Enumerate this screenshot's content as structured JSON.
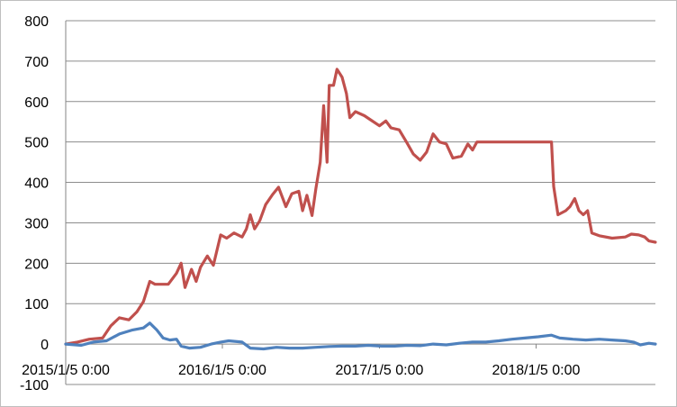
{
  "chart_data": {
    "type": "line",
    "title": "",
    "xlabel": "",
    "ylabel": "",
    "ylim": [
      -100,
      800
    ],
    "yticks": [
      -100,
      0,
      100,
      200,
      300,
      400,
      500,
      600,
      700,
      800
    ],
    "xlim": [
      "2015-01-05",
      "2018-10-10"
    ],
    "xticks": [
      {
        "date": "2015-01-05",
        "label": "2015/1/5 0:00"
      },
      {
        "date": "2016-01-05",
        "label": "2016/1/5 0:00"
      },
      {
        "date": "2017-01-05",
        "label": "2017/1/5 0:00"
      },
      {
        "date": "2018-01-05",
        "label": "2018/1/5 0:00"
      }
    ],
    "grid": true,
    "legend": "none",
    "series": [
      {
        "color": "#c0504d",
        "points": [
          [
            "2015-01-05",
            0
          ],
          [
            "2015-02-01",
            5
          ],
          [
            "2015-03-01",
            12
          ],
          [
            "2015-04-01",
            15
          ],
          [
            "2015-04-20",
            45
          ],
          [
            "2015-05-10",
            65
          ],
          [
            "2015-06-01",
            60
          ],
          [
            "2015-06-20",
            80
          ],
          [
            "2015-07-05",
            105
          ],
          [
            "2015-07-20",
            155
          ],
          [
            "2015-08-01",
            148
          ],
          [
            "2015-09-01",
            148
          ],
          [
            "2015-09-20",
            175
          ],
          [
            "2015-10-01",
            200
          ],
          [
            "2015-10-10",
            140
          ],
          [
            "2015-10-25",
            185
          ],
          [
            "2015-11-05",
            155
          ],
          [
            "2015-11-15",
            190
          ],
          [
            "2015-12-01",
            218
          ],
          [
            "2015-12-15",
            195
          ],
          [
            "2016-01-01",
            270
          ],
          [
            "2016-01-15",
            262
          ],
          [
            "2016-02-01",
            275
          ],
          [
            "2016-02-20",
            265
          ],
          [
            "2016-03-01",
            285
          ],
          [
            "2016-03-10",
            320
          ],
          [
            "2016-03-20",
            285
          ],
          [
            "2016-04-01",
            305
          ],
          [
            "2016-04-15",
            345
          ],
          [
            "2016-05-01",
            370
          ],
          [
            "2016-05-15",
            388
          ],
          [
            "2016-06-01",
            340
          ],
          [
            "2016-06-15",
            372
          ],
          [
            "2016-07-01",
            378
          ],
          [
            "2016-07-10",
            330
          ],
          [
            "2016-07-20",
            368
          ],
          [
            "2016-08-01",
            318
          ],
          [
            "2016-08-10",
            385
          ],
          [
            "2016-08-20",
            450
          ],
          [
            "2016-08-28",
            590
          ],
          [
            "2016-09-05",
            450
          ],
          [
            "2016-09-10",
            640
          ],
          [
            "2016-09-20",
            640
          ],
          [
            "2016-09-28",
            680
          ],
          [
            "2016-10-10",
            660
          ],
          [
            "2016-10-20",
            620
          ],
          [
            "2016-10-28",
            560
          ],
          [
            "2016-11-10",
            575
          ],
          [
            "2016-12-01",
            565
          ],
          [
            "2016-12-15",
            555
          ],
          [
            "2017-01-05",
            540
          ],
          [
            "2017-01-20",
            552
          ],
          [
            "2017-02-01",
            535
          ],
          [
            "2017-02-20",
            530
          ],
          [
            "2017-03-10",
            498
          ],
          [
            "2017-03-25",
            470
          ],
          [
            "2017-04-10",
            455
          ],
          [
            "2017-04-25",
            475
          ],
          [
            "2017-05-10",
            520
          ],
          [
            "2017-05-25",
            500
          ],
          [
            "2017-06-10",
            495
          ],
          [
            "2017-06-25",
            460
          ],
          [
            "2017-07-15",
            465
          ],
          [
            "2017-07-30",
            495
          ],
          [
            "2017-08-10",
            480
          ],
          [
            "2017-08-20",
            500
          ],
          [
            "2017-09-15",
            500
          ],
          [
            "2017-10-15",
            500
          ],
          [
            "2017-11-15",
            500
          ],
          [
            "2017-12-15",
            500
          ],
          [
            "2018-01-15",
            500
          ],
          [
            "2018-02-10",
            500
          ],
          [
            "2018-02-15",
            390
          ],
          [
            "2018-02-25",
            320
          ],
          [
            "2018-03-15",
            330
          ],
          [
            "2018-03-25",
            340
          ],
          [
            "2018-04-05",
            360
          ],
          [
            "2018-04-15",
            330
          ],
          [
            "2018-04-25",
            320
          ],
          [
            "2018-05-05",
            330
          ],
          [
            "2018-05-15",
            275
          ],
          [
            "2018-06-01",
            268
          ],
          [
            "2018-07-01",
            262
          ],
          [
            "2018-08-01",
            265
          ],
          [
            "2018-08-15",
            272
          ],
          [
            "2018-09-01",
            270
          ],
          [
            "2018-09-15",
            265
          ],
          [
            "2018-09-25",
            255
          ],
          [
            "2018-10-10",
            252
          ]
        ]
      },
      {
        "color": "#4f81bd",
        "points": [
          [
            "2015-01-05",
            0
          ],
          [
            "2015-02-10",
            -3
          ],
          [
            "2015-03-10",
            5
          ],
          [
            "2015-04-10",
            8
          ],
          [
            "2015-05-10",
            25
          ],
          [
            "2015-06-10",
            35
          ],
          [
            "2015-07-05",
            40
          ],
          [
            "2015-07-20",
            52
          ],
          [
            "2015-08-05",
            35
          ],
          [
            "2015-08-20",
            15
          ],
          [
            "2015-09-05",
            10
          ],
          [
            "2015-09-20",
            12
          ],
          [
            "2015-10-01",
            -5
          ],
          [
            "2015-10-20",
            -10
          ],
          [
            "2015-11-15",
            -8
          ],
          [
            "2015-12-10",
            0
          ],
          [
            "2016-01-01",
            5
          ],
          [
            "2016-01-20",
            8
          ],
          [
            "2016-02-20",
            5
          ],
          [
            "2016-03-10",
            -10
          ],
          [
            "2016-04-10",
            -12
          ],
          [
            "2016-05-10",
            -8
          ],
          [
            "2016-06-10",
            -10
          ],
          [
            "2016-07-10",
            -10
          ],
          [
            "2016-08-10",
            -8
          ],
          [
            "2016-09-10",
            -6
          ],
          [
            "2016-10-10",
            -5
          ],
          [
            "2016-11-10",
            -5
          ],
          [
            "2016-12-10",
            -3
          ],
          [
            "2017-01-10",
            -5
          ],
          [
            "2017-02-10",
            -5
          ],
          [
            "2017-03-10",
            -3
          ],
          [
            "2017-04-10",
            -4
          ],
          [
            "2017-05-10",
            0
          ],
          [
            "2017-06-10",
            -2
          ],
          [
            "2017-07-10",
            2
          ],
          [
            "2017-08-10",
            5
          ],
          [
            "2017-09-10",
            5
          ],
          [
            "2017-10-10",
            8
          ],
          [
            "2017-11-10",
            12
          ],
          [
            "2017-12-10",
            15
          ],
          [
            "2018-01-10",
            18
          ],
          [
            "2018-02-10",
            22
          ],
          [
            "2018-03-01",
            15
          ],
          [
            "2018-04-01",
            12
          ],
          [
            "2018-05-01",
            10
          ],
          [
            "2018-06-01",
            12
          ],
          [
            "2018-07-01",
            10
          ],
          [
            "2018-08-01",
            8
          ],
          [
            "2018-08-20",
            5
          ],
          [
            "2018-09-05",
            -2
          ],
          [
            "2018-09-25",
            2
          ],
          [
            "2018-10-10",
            0
          ]
        ]
      }
    ]
  }
}
